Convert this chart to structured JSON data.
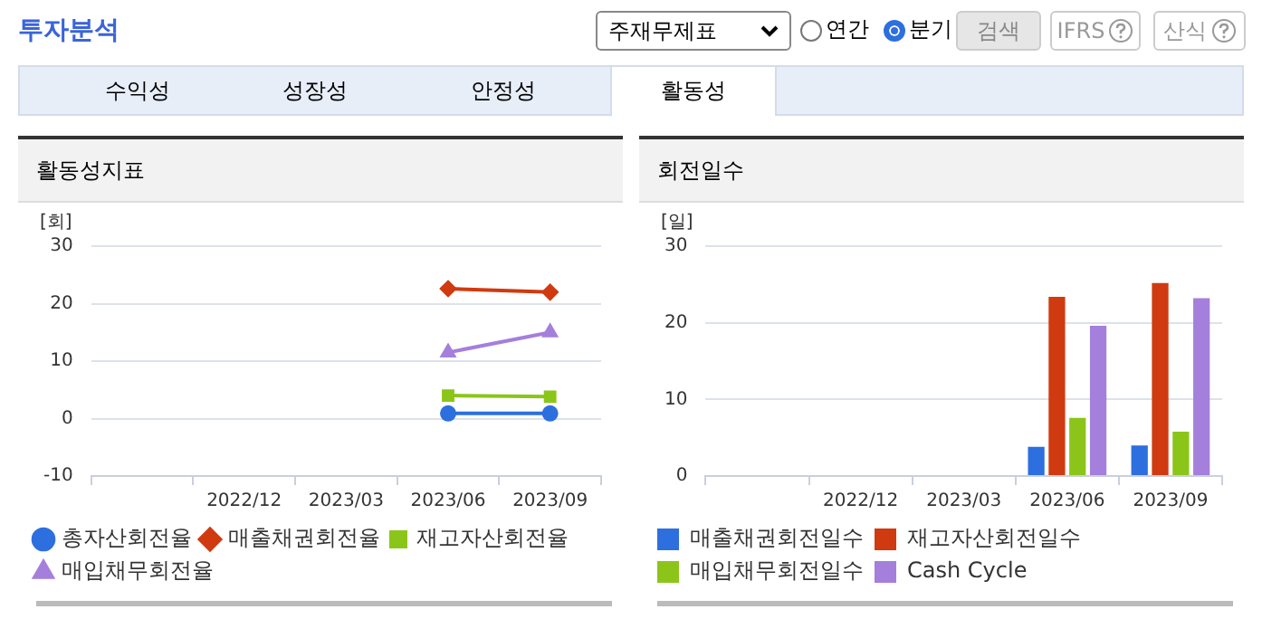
{
  "chart_data": [
    {
      "type": "other",
      "title": "투자분석",
      "annotations": [
        "주재무제표",
        "연간",
        "분기",
        "검색",
        "IFRS",
        "산식",
        "수익성",
        "성장성",
        "안정성",
        "활동성"
      ]
    },
    {
      "type": "line",
      "title": "활동성지표",
      "ylabel": "[회]",
      "categories": [
        null,
        "2022/12",
        "2023/03",
        "2023/06",
        "2023/09"
      ],
      "ylim": [
        -10,
        30
      ],
      "yticks": [
        -10,
        0,
        10,
        20,
        30
      ],
      "grid": "y",
      "legend": "bottom",
      "line_style": "solid",
      "series": [
        {
          "name": "총자산회전율",
          "color": "#2d6fde",
          "marker": "circle",
          "values": [
            null,
            null,
            null,
            0.9,
            0.9
          ]
        },
        {
          "name": "매출채권회전율",
          "color": "#d03a10",
          "marker": "diamond",
          "values": [
            null,
            null,
            null,
            22.6,
            22.0
          ]
        },
        {
          "name": "재고자산회전율",
          "color": "#8cc51a",
          "marker": "square",
          "values": [
            null,
            null,
            null,
            4.0,
            3.8
          ]
        },
        {
          "name": "매입채무회전율",
          "color": "#a57fdc",
          "marker": "triangle",
          "values": [
            null,
            null,
            null,
            11.5,
            15.0
          ]
        }
      ]
    },
    {
      "type": "bar",
      "title": "회전일수",
      "ylabel": "[일]",
      "categories": [
        null,
        "2022/12",
        "2023/03",
        "2023/06",
        "2023/09"
      ],
      "ylim": [
        0,
        30
      ],
      "yticks": [
        0,
        10,
        20,
        30
      ],
      "grid": "y",
      "legend": "bottom",
      "series": [
        {
          "name": "매출채권회전일수",
          "color": "#2d6fde",
          "values": [
            null,
            null,
            null,
            3.8,
            4.0
          ]
        },
        {
          "name": "재고자산회전일수",
          "color": "#d03a10",
          "values": [
            null,
            null,
            null,
            23.4,
            25.2
          ]
        },
        {
          "name": "매입채무회전일수",
          "color": "#8cc51a",
          "values": [
            null,
            null,
            null,
            7.6,
            5.8
          ]
        },
        {
          "name": "Cash Cycle",
          "color": "#a57fdc",
          "values": [
            null,
            null,
            null,
            19.6,
            23.2
          ]
        }
      ]
    }
  ]
}
